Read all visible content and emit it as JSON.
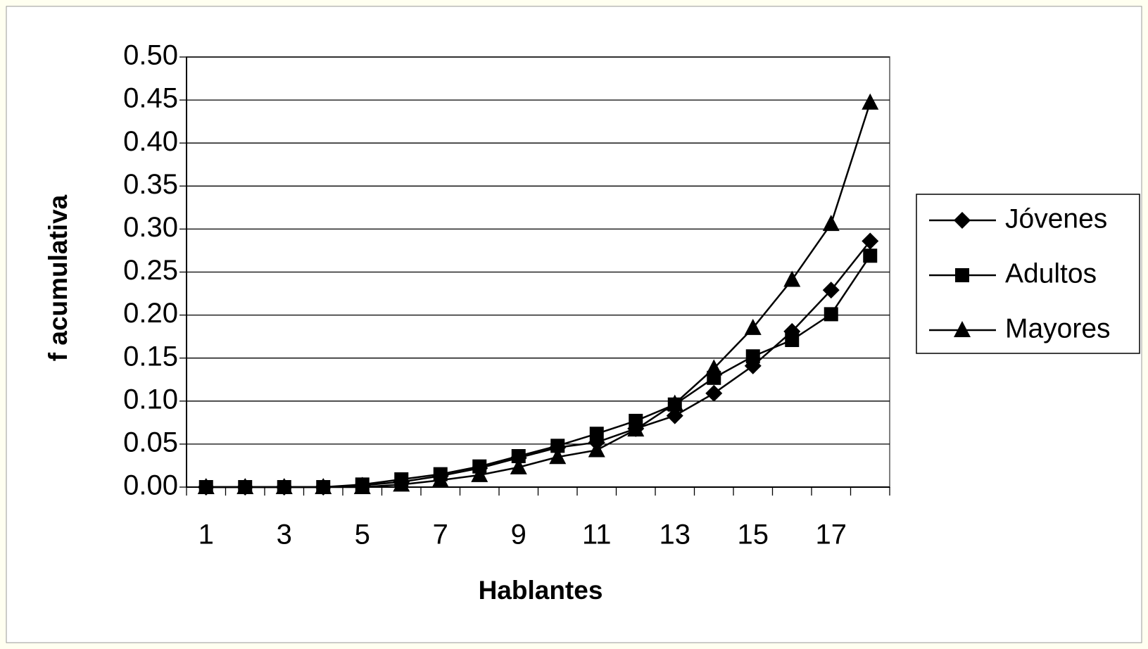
{
  "chart_data": {
    "type": "line",
    "x_label": "Hablantes",
    "y_label": "f acumulativa",
    "categories": [
      "1",
      null,
      "3",
      null,
      "5",
      null,
      "7",
      null,
      "9",
      null,
      "11",
      null,
      "13",
      null,
      "15",
      null,
      "17",
      null
    ],
    "series": [
      {
        "name": "Jóvenes",
        "color": "#000000",
        "marker": "diamond",
        "values": [
          0,
          0,
          0,
          0,
          0.002,
          0.006,
          0.013,
          0.022,
          0.034,
          0.046,
          0.052,
          0.068,
          0.083,
          0.109,
          0.141,
          0.181,
          0.229,
          0.286
        ]
      },
      {
        "name": "Adultos",
        "color": "#000000",
        "marker": "square",
        "values": [
          0,
          0,
          0,
          0,
          0.003,
          0.009,
          0.015,
          0.024,
          0.036,
          0.048,
          0.062,
          0.077,
          0.096,
          0.127,
          0.152,
          0.171,
          0.201,
          0.269
        ]
      },
      {
        "name": "Mayores",
        "color": "#000000",
        "marker": "triangle",
        "values": [
          0,
          0,
          0,
          0,
          0,
          0.003,
          0.008,
          0.014,
          0.023,
          0.035,
          0.043,
          0.067,
          0.097,
          0.138,
          0.185,
          0.241,
          0.306,
          0.447
        ]
      }
    ],
    "ylim": [
      0,
      0.5
    ],
    "yticks": [
      {
        "value": 0,
        "label": "0.00"
      },
      {
        "value": 0.05,
        "label": "0.05"
      },
      {
        "value": 0.1,
        "label": "0.10"
      },
      {
        "value": 0.15,
        "label": "0.15"
      },
      {
        "value": 0.2,
        "label": "0.20"
      },
      {
        "value": 0.25,
        "label": "0.25"
      },
      {
        "value": 0.3,
        "label": "0.30"
      },
      {
        "value": 0.35,
        "label": "0.35"
      },
      {
        "value": 0.4,
        "label": "0.40"
      },
      {
        "value": 0.45,
        "label": "0.45"
      },
      {
        "value": 0.5,
        "label": "0.50"
      }
    ],
    "grid": true,
    "legend": "right"
  }
}
